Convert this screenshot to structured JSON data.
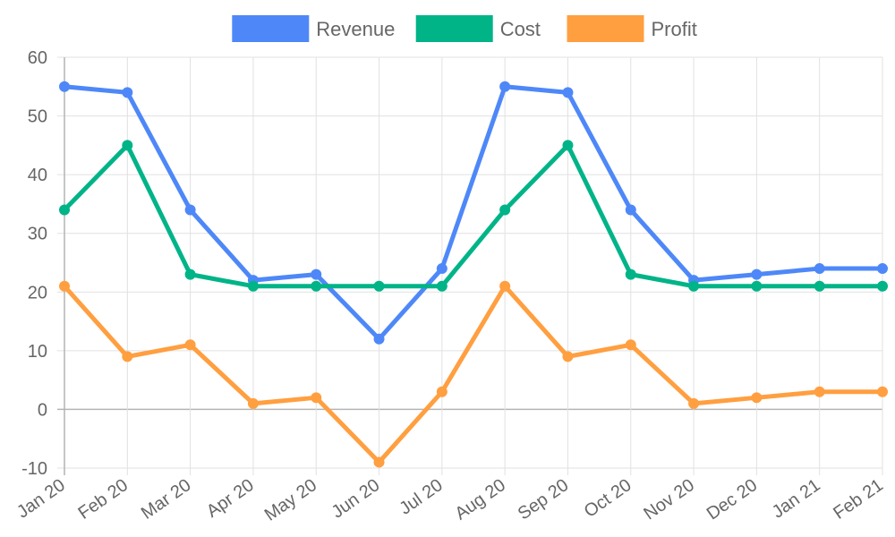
{
  "chart_data": {
    "type": "line",
    "categories": [
      "Jan 20",
      "Feb 20",
      "Mar 20",
      "Apr 20",
      "May 20",
      "Jun 20",
      "Jul 20",
      "Aug 20",
      "Sep 20",
      "Oct 20",
      "Nov 20",
      "Dec 20",
      "Jan 21",
      "Feb 21"
    ],
    "series": [
      {
        "name": "Revenue",
        "color": "#4e88f8",
        "values": [
          55,
          54,
          34,
          22,
          23,
          12,
          24,
          55,
          54,
          34,
          22,
          23,
          24,
          24
        ]
      },
      {
        "name": "Cost",
        "color": "#00b488",
        "values": [
          34,
          45,
          23,
          21,
          21,
          21,
          21,
          34,
          45,
          23,
          21,
          21,
          21,
          21
        ]
      },
      {
        "name": "Profit",
        "color": "#ff9f40",
        "values": [
          21,
          9,
          11,
          1,
          2,
          -9,
          3,
          21,
          9,
          11,
          1,
          2,
          3,
          3
        ]
      }
    ],
    "ylim": [
      -10,
      60
    ],
    "yticks": [
      -10,
      0,
      10,
      20,
      30,
      40,
      50,
      60
    ],
    "grid": true,
    "legend": "top-center"
  }
}
